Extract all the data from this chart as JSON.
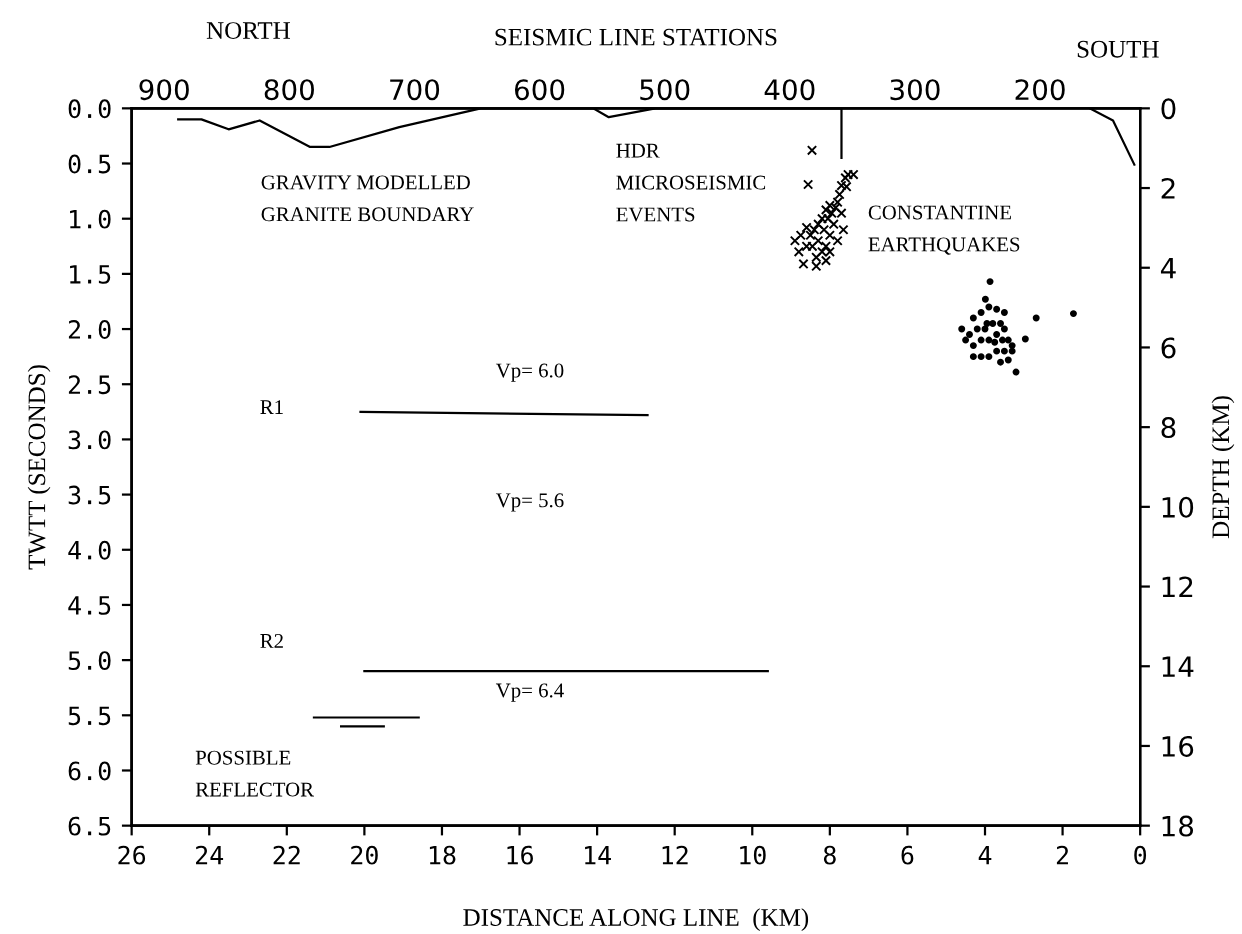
{
  "chart_data": {
    "type": "line",
    "xlabel": "DISTANCE ALONG LINE  (KM)",
    "ylabel": "TWTT (SECONDS)",
    "y2label": "DEPTH (KM)",
    "x2label": "SEISMIC LINE STATIONS",
    "xlim": [
      26,
      0
    ],
    "xticks": [
      26,
      24,
      22,
      20,
      18,
      16,
      14,
      12,
      10,
      8,
      6,
      4,
      2,
      0
    ],
    "ylim": [
      6.5,
      0
    ],
    "yticks": [
      {
        "value": 0,
        "label": "0.0"
      },
      {
        "value": 0.5,
        "label": "0.5"
      },
      {
        "value": 1,
        "label": "1.0"
      },
      {
        "value": 1.5,
        "label": "1.5"
      },
      {
        "value": 2,
        "label": "2.0"
      },
      {
        "value": 2.5,
        "label": "2.5"
      },
      {
        "value": 3,
        "label": "3.0"
      },
      {
        "value": 3.5,
        "label": "3.5"
      },
      {
        "value": 4,
        "label": "4.0"
      },
      {
        "value": 4.5,
        "label": "4.5"
      },
      {
        "value": 5,
        "label": "5.0"
      },
      {
        "value": 5.5,
        "label": "5.5"
      },
      {
        "value": 6,
        "label": "6.0"
      },
      {
        "value": 6.5,
        "label": "6.5"
      }
    ],
    "y2lim": [
      18,
      0
    ],
    "y2ticks": [
      0,
      2,
      4,
      6,
      8,
      10,
      12,
      14,
      16,
      18
    ],
    "x2lim": [
      926,
      120
    ],
    "x2ticks": [
      900,
      800,
      700,
      600,
      500,
      400,
      300,
      200
    ],
    "grid": false,
    "series": [
      {
        "color": "#000000",
        "x": [
          24.8,
          24.2,
          23.5,
          22.7,
          21.4,
          20.9,
          19.1,
          17.0,
          14.1,
          13.7,
          12.5,
          7.7,
          7.7,
          4.0,
          1.3,
          0.7,
          0.15
        ],
        "values": [
          0.1,
          0.1,
          0.19,
          0.11,
          0.35,
          0.35,
          0.17,
          0.0,
          0.0,
          0.08,
          0.0,
          0.0,
          0.45,
          null,
          0.0,
          0.11,
          0.51
        ]
      },
      {
        "color": "#000000",
        "x": [
          20.1,
          12.7
        ],
        "values": [
          2.75,
          2.78
        ]
      },
      {
        "color": "#000000",
        "x": [
          20.0,
          9.6
        ],
        "values": [
          5.1,
          5.1
        ]
      },
      {
        "color": "#000000",
        "x": [
          21.3,
          18.6
        ],
        "values": [
          5.52,
          5.52
        ]
      },
      {
        "color": "#000000",
        "x": [
          20.6,
          19.5
        ],
        "values": [
          5.6,
          5.6
        ]
      },
      {
        "type": "scatter",
        "marker": "cross",
        "color": "#000000",
        "x": [
          8.46,
          7.53,
          7.39,
          7.6,
          7.57,
          8.56,
          7.7,
          7.75,
          7.8,
          7.85,
          7.95,
          8.0,
          8.1,
          8.05,
          8.2,
          8.3,
          8.15,
          8.4,
          8.6,
          8.75,
          8.5,
          8.3,
          8.1,
          8.0,
          8.45,
          8.6,
          8.8,
          8.2,
          8.0,
          7.8,
          7.9,
          8.35,
          8.68,
          8.35,
          8.1,
          7.7,
          7.65,
          8.9
        ],
        "values": [
          0.38,
          0.6,
          0.6,
          0.63,
          0.71,
          0.69,
          0.7,
          0.78,
          0.85,
          0.9,
          0.95,
          0.88,
          0.92,
          1.0,
          1.0,
          1.05,
          1.1,
          1.1,
          1.08,
          1.15,
          1.15,
          1.2,
          1.25,
          1.15,
          1.25,
          1.25,
          1.3,
          1.3,
          1.3,
          1.2,
          1.05,
          1.35,
          1.41,
          1.43,
          1.38,
          0.95,
          1.1,
          1.2
        ]
      },
      {
        "type": "scatter",
        "marker": "circle",
        "color": "#000000",
        "x": [
          3.87,
          3.99,
          2.68,
          1.72,
          2.96,
          3.2,
          4.3,
          4.1,
          3.9,
          3.7,
          3.5,
          3.6,
          3.8,
          4.0,
          4.2,
          4.4,
          4.5,
          4.3,
          4.1,
          3.9,
          3.7,
          3.5,
          3.4,
          3.3,
          3.5,
          3.7,
          3.9,
          4.1,
          4.3,
          3.6,
          3.4,
          3.3,
          4.6,
          3.95,
          3.75,
          3.55
        ],
        "values": [
          1.57,
          1.73,
          1.9,
          1.86,
          2.09,
          2.39,
          1.9,
          1.85,
          1.8,
          1.82,
          1.85,
          1.95,
          1.95,
          2.0,
          2.0,
          2.05,
          2.1,
          2.15,
          2.1,
          2.1,
          2.05,
          2.0,
          2.1,
          2.15,
          2.2,
          2.2,
          2.25,
          2.25,
          2.25,
          2.3,
          2.28,
          2.2,
          2.0,
          1.95,
          2.12,
          2.1
        ]
      }
    ],
    "annotations": [
      "NORTH",
      "SOUTH",
      "GRAVITY MODELLED\nGRANITE BOUNDARY",
      "HDR\nMICROSEISMIC\nEVENTS",
      "CONSTANTINE\nEARTHQUAKES",
      "Vp= 6.0",
      "R1",
      "Vp= 5.6",
      "R2",
      "Vp= 6.4",
      "POSSIBLE\nREFLECTOR"
    ]
  }
}
